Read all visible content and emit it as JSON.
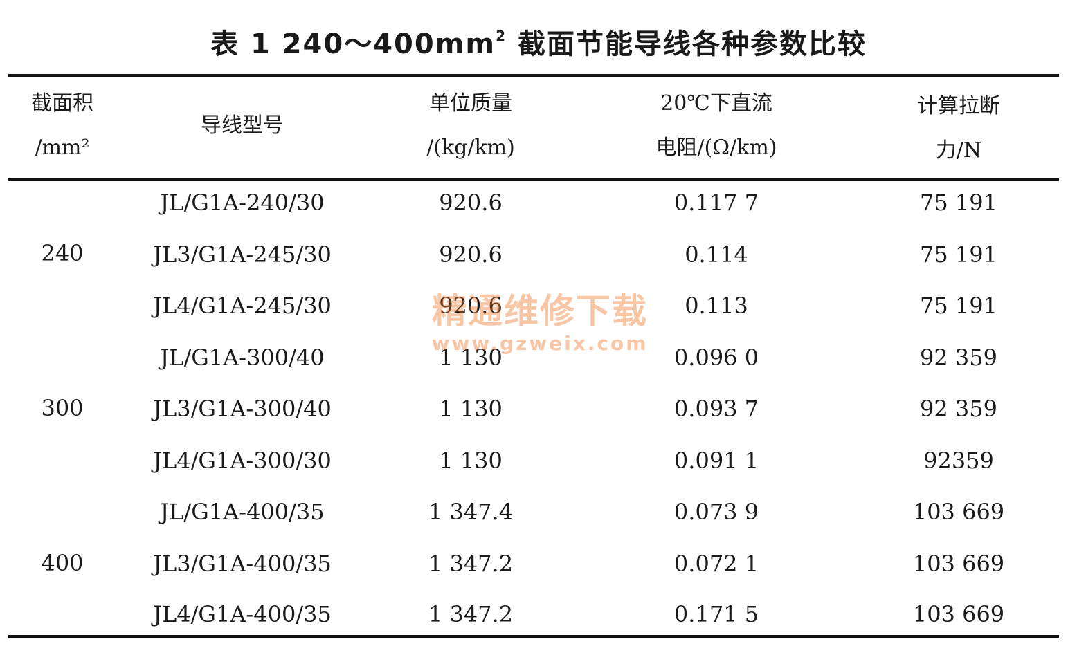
{
  "title": {
    "prefix": "表 1 240～400mm",
    "sup": "2",
    "suffix": " 截面节能导线各种参数比较"
  },
  "headers": {
    "area": {
      "line1": "截面积",
      "line2": "/mm²"
    },
    "model": {
      "line1": "导线型号"
    },
    "mass": {
      "line1": "单位质量",
      "line2": "/(kg/km)"
    },
    "resistance": {
      "line1": "20℃下直流",
      "line2": "电阻/(Ω/km)"
    },
    "breaking": {
      "line1": "计算拉断",
      "line2": "力/N"
    }
  },
  "groups": [
    {
      "area": "240"
    },
    {
      "area": "300"
    },
    {
      "area": "400"
    }
  ],
  "rows": [
    {
      "model": "JL/G1A-240/30",
      "mass": "920.6",
      "resistance": "0.117 7",
      "breaking": "75 191"
    },
    {
      "model": "JL3/G1A-245/30",
      "mass": "920.6",
      "resistance": "0.114",
      "breaking": "75 191"
    },
    {
      "model": "JL4/G1A-245/30",
      "mass": "920.6",
      "resistance": "0.113",
      "breaking": "75 191"
    },
    {
      "model": "JL/G1A-300/40",
      "mass": "1 130",
      "resistance": "0.096 0",
      "breaking": "92 359"
    },
    {
      "model": "JL3/G1A-300/40",
      "mass": "1 130",
      "resistance": "0.093 7",
      "breaking": "92 359"
    },
    {
      "model": "JL4/G1A-300/30",
      "mass": "1 130",
      "resistance": "0.091 1",
      "breaking": "92359"
    },
    {
      "model": "JL/G1A-400/35",
      "mass": "1 347.4",
      "resistance": "0.073 9",
      "breaking": "103 669"
    },
    {
      "model": "JL3/G1A-400/35",
      "mass": "1 347.2",
      "resistance": "0.072 1",
      "breaking": "103 669"
    },
    {
      "model": "JL4/G1A-400/35",
      "mass": "1 347.2",
      "resistance": "0.171 5",
      "breaking": "103 669"
    }
  ],
  "watermark": {
    "text": "精通维修下载",
    "url": "www.gzweix.com"
  }
}
